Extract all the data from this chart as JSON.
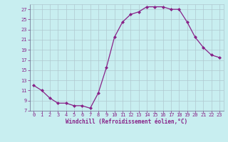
{
  "x": [
    0,
    1,
    2,
    3,
    4,
    5,
    6,
    7,
    8,
    9,
    10,
    11,
    12,
    13,
    14,
    15,
    16,
    17,
    18,
    19,
    20,
    21,
    22,
    23
  ],
  "y": [
    12,
    11,
    9.5,
    8.5,
    8.5,
    8,
    8,
    7.5,
    10.5,
    15.5,
    21.5,
    24.5,
    26,
    26.5,
    27.5,
    27.5,
    27.5,
    27,
    27,
    24.5,
    21.5,
    19.5,
    18,
    17.5
  ],
  "line_color": "#882288",
  "marker_color": "#882288",
  "bg_color": "#c8eef0",
  "grid_color": "#b0c8d0",
  "xlabel": "Windchill (Refroidissement éolien,°C)",
  "xlabel_color": "#882288",
  "tick_color": "#882288",
  "ylim": [
    7,
    28
  ],
  "xlim": [
    -0.5,
    23.5
  ],
  "yticks": [
    7,
    9,
    11,
    13,
    15,
    17,
    19,
    21,
    23,
    25,
    27
  ],
  "xticks": [
    0,
    1,
    2,
    3,
    4,
    5,
    6,
    7,
    8,
    9,
    10,
    11,
    12,
    13,
    14,
    15,
    16,
    17,
    18,
    19,
    20,
    21,
    22,
    23
  ],
  "tick_fontsize": 5.0,
  "xlabel_fontsize": 5.5
}
